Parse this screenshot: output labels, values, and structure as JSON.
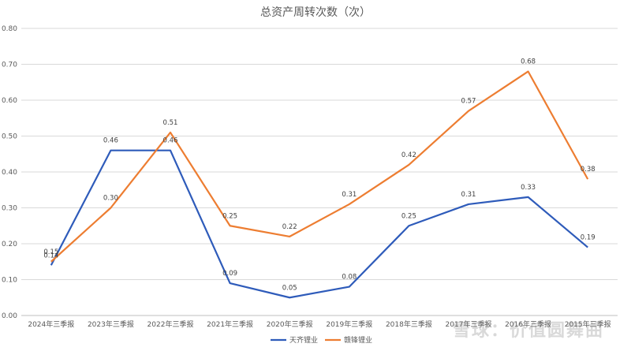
{
  "chart_data": {
    "type": "line",
    "title": "总资产周转次数（次）",
    "categories": [
      "2024年三季报",
      "2023年三季报",
      "2022年三季报",
      "2021年三季报",
      "2020年三季报",
      "2019年三季报",
      "2018年三季报",
      "2017年三季报",
      "2016年三季报",
      "2015年三季报"
    ],
    "series": [
      {
        "name": "天齐锂业",
        "color": "#2e5bba",
        "values": [
          0.14,
          0.46,
          0.46,
          0.09,
          0.05,
          0.08,
          0.25,
          0.31,
          0.33,
          0.19
        ]
      },
      {
        "name": "赣锋锂业",
        "color": "#ed7d31",
        "values": [
          0.15,
          0.3,
          0.51,
          0.25,
          0.22,
          0.31,
          0.42,
          0.57,
          0.68,
          0.38
        ]
      }
    ],
    "ylim": [
      0,
      0.8
    ],
    "yticks": [
      "0.00",
      "0.10",
      "0.20",
      "0.30",
      "0.40",
      "0.50",
      "0.60",
      "0.70",
      "0.80"
    ],
    "grid": true,
    "legend": "bottom"
  },
  "watermark": "雪球：价值圆舞曲"
}
